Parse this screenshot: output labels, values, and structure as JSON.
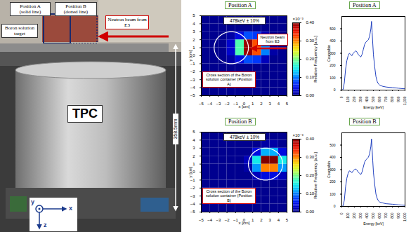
{
  "photo": {
    "position_a": [
      "Position A",
      "(solid line)"
    ],
    "position_b": [
      "Position B",
      "(dotted line)"
    ],
    "target": "Boron solution target",
    "beam": "Neutron beam from E3",
    "detector": "TPC",
    "height": "358.5mm",
    "axes": [
      "y",
      "x",
      "z"
    ]
  },
  "chart_data": [
    {
      "type": "heatmap",
      "panel": "Position A",
      "title": "478keV ± 10%",
      "xlabel": "x [cm]",
      "ylabel": "y [cm]",
      "xlim": [
        -5,
        5
      ],
      "ylim": [
        -5,
        5
      ],
      "xticks": [
        -5,
        -4,
        -3,
        -2,
        -1,
        0,
        1,
        2,
        3,
        4,
        5
      ],
      "yticks": [
        -5,
        -4,
        -3,
        -2,
        -1,
        0,
        1,
        2,
        3,
        4,
        5
      ],
      "x_bins": [
        -5,
        -4,
        -3,
        -2,
        -1,
        0,
        1,
        2,
        3,
        4,
        5
      ],
      "y_bins": [
        -5,
        -4,
        -3,
        -2,
        -1,
        0,
        1,
        2,
        3,
        4,
        5
      ],
      "cells": [
        [
          0,
          0,
          0,
          0,
          0,
          0,
          0,
          0,
          0,
          0
        ],
        [
          0,
          0,
          0,
          0,
          0,
          0,
          0,
          0,
          0,
          0
        ],
        [
          0,
          0,
          0,
          0,
          0,
          0,
          0,
          0,
          0,
          0
        ],
        [
          0,
          0,
          0,
          0,
          0,
          0,
          0,
          0,
          0,
          0
        ],
        [
          0,
          0,
          0,
          0.01,
          0.04,
          0.08,
          0.07,
          0.02,
          0,
          0
        ],
        [
          0,
          0,
          0,
          0.03,
          0.18,
          0.39,
          0.32,
          0.1,
          0.01,
          0
        ],
        [
          0,
          0,
          0,
          0.03,
          0.18,
          0.39,
          0.32,
          0.1,
          0.01,
          0
        ],
        [
          0,
          0,
          0,
          0.01,
          0.04,
          0.08,
          0.07,
          0.02,
          0,
          0
        ],
        [
          0,
          0,
          0,
          0,
          0,
          0,
          0,
          0,
          0,
          0
        ],
        [
          0,
          0,
          0,
          0,
          0,
          0,
          0,
          0,
          0,
          0
        ]
      ],
      "colorbar_label": "Relative Frequency [a.u.]",
      "colorbar_scale": "×10⁻³",
      "colorbar_range": [
        0,
        0.4
      ],
      "colorbar_ticks": [
        0,
        0.1,
        0.2,
        0.3,
        0.4
      ],
      "beam_label": "Neutron beam from E3",
      "container_label": "Cross section of the Boron solution container (Position A)",
      "container": {
        "cx": -1.5,
        "cy": 1,
        "r": 2
      }
    },
    {
      "type": "heatmap",
      "panel": "Position B",
      "title": "478keV ± 10%",
      "xlabel": "x [cm]",
      "ylabel": "y [cm]",
      "xlim": [
        -5,
        5
      ],
      "ylim": [
        -5,
        5
      ],
      "xticks": [
        -5,
        -4,
        -3,
        -2,
        -1,
        0,
        1,
        2,
        3,
        4,
        5
      ],
      "yticks": [
        -5,
        -4,
        -3,
        -2,
        -1,
        0,
        1,
        2,
        3,
        4,
        5
      ],
      "x_bins": [
        -5,
        -4,
        -3,
        -2,
        -1,
        0,
        1,
        2,
        3,
        4,
        5
      ],
      "y_bins": [
        -5,
        -4,
        -3,
        -2,
        -1,
        0,
        1,
        2,
        3,
        4,
        5
      ],
      "cells": [
        [
          0,
          0,
          0,
          0,
          0,
          0,
          0,
          0,
          0,
          0
        ],
        [
          0,
          0,
          0,
          0,
          0,
          0,
          0,
          0,
          0,
          0
        ],
        [
          0,
          0,
          0,
          0,
          0,
          0,
          0,
          0,
          0,
          0
        ],
        [
          0,
          0,
          0,
          0,
          0,
          0,
          0,
          0,
          0,
          0
        ],
        [
          0,
          0,
          0,
          0,
          0,
          0,
          0.02,
          0.04,
          0.04,
          0.02
        ],
        [
          0,
          0,
          0,
          0,
          0,
          0.01,
          0.11,
          0.3,
          0.3,
          0.11
        ],
        [
          0,
          0,
          0,
          0,
          0,
          0.02,
          0.15,
          0.41,
          0.41,
          0.15
        ],
        [
          0,
          0,
          0,
          0,
          0,
          0,
          0.04,
          0.12,
          0.12,
          0.04
        ],
        [
          0,
          0,
          0,
          0,
          0,
          0,
          0,
          0.01,
          0.01,
          0
        ],
        [
          0,
          0,
          0,
          0,
          0,
          0,
          0,
          0,
          0,
          0
        ]
      ],
      "colorbar_label": "Relative Frequency [a.u.]",
      "colorbar_scale": "×10⁻³",
      "colorbar_range": [
        0,
        0.4
      ],
      "colorbar_ticks": [
        0,
        0.1,
        0.2,
        0.3,
        0.4
      ],
      "container_label": "Cross section of the Boron solution container (Position B)",
      "container": {
        "cx": 2.5,
        "cy": 1,
        "r": 2
      }
    },
    {
      "type": "line",
      "panel": "Position A",
      "xlabel": "Energy [keV]",
      "ylabel": "Counts/bin",
      "color": "#1f3fbf",
      "xlim": [
        0,
        1000
      ],
      "ylim": [
        0,
        600
      ],
      "xticks": [
        0,
        100,
        200,
        300,
        400,
        500,
        600,
        700,
        800,
        900,
        1000
      ],
      "yticks": [
        0,
        100,
        200,
        300,
        400,
        500
      ],
      "x": [
        0,
        20,
        40,
        60,
        80,
        100,
        120,
        140,
        160,
        180,
        200,
        220,
        240,
        260,
        280,
        300,
        320,
        340,
        360,
        380,
        400,
        420,
        440,
        460,
        470,
        480,
        490,
        500,
        520,
        540,
        560,
        580,
        600,
        650,
        700,
        750,
        800,
        850,
        900,
        950,
        1000
      ],
      "values": [
        0,
        5,
        60,
        170,
        240,
        280,
        300,
        290,
        280,
        300,
        310,
        320,
        310,
        290,
        280,
        270,
        290,
        330,
        370,
        390,
        400,
        410,
        440,
        500,
        560,
        470,
        380,
        290,
        190,
        110,
        70,
        50,
        40,
        30,
        25,
        22,
        20,
        18,
        15,
        12,
        10
      ]
    },
    {
      "type": "line",
      "panel": "Position B",
      "xlabel": "Energy [keV]",
      "ylabel": "Counts/bin",
      "color": "#1f3fbf",
      "xlim": [
        0,
        1000
      ],
      "ylim": [
        0,
        600
      ],
      "xticks": [
        0,
        100,
        200,
        300,
        400,
        500,
        600,
        700,
        800,
        900,
        1000
      ],
      "yticks": [
        0,
        100,
        200,
        300,
        400,
        500
      ],
      "x": [
        0,
        20,
        40,
        60,
        80,
        100,
        120,
        140,
        160,
        180,
        200,
        220,
        240,
        260,
        280,
        300,
        320,
        340,
        360,
        380,
        400,
        420,
        440,
        460,
        470,
        480,
        490,
        500,
        520,
        540,
        560,
        580,
        600,
        650,
        700,
        750,
        800,
        850,
        900,
        950,
        1000
      ],
      "values": [
        0,
        5,
        50,
        160,
        230,
        270,
        290,
        285,
        275,
        290,
        300,
        305,
        295,
        280,
        270,
        260,
        280,
        320,
        360,
        380,
        390,
        400,
        430,
        490,
        550,
        460,
        370,
        280,
        180,
        100,
        65,
        45,
        35,
        28,
        22,
        20,
        18,
        15,
        13,
        11,
        9
      ]
    }
  ]
}
